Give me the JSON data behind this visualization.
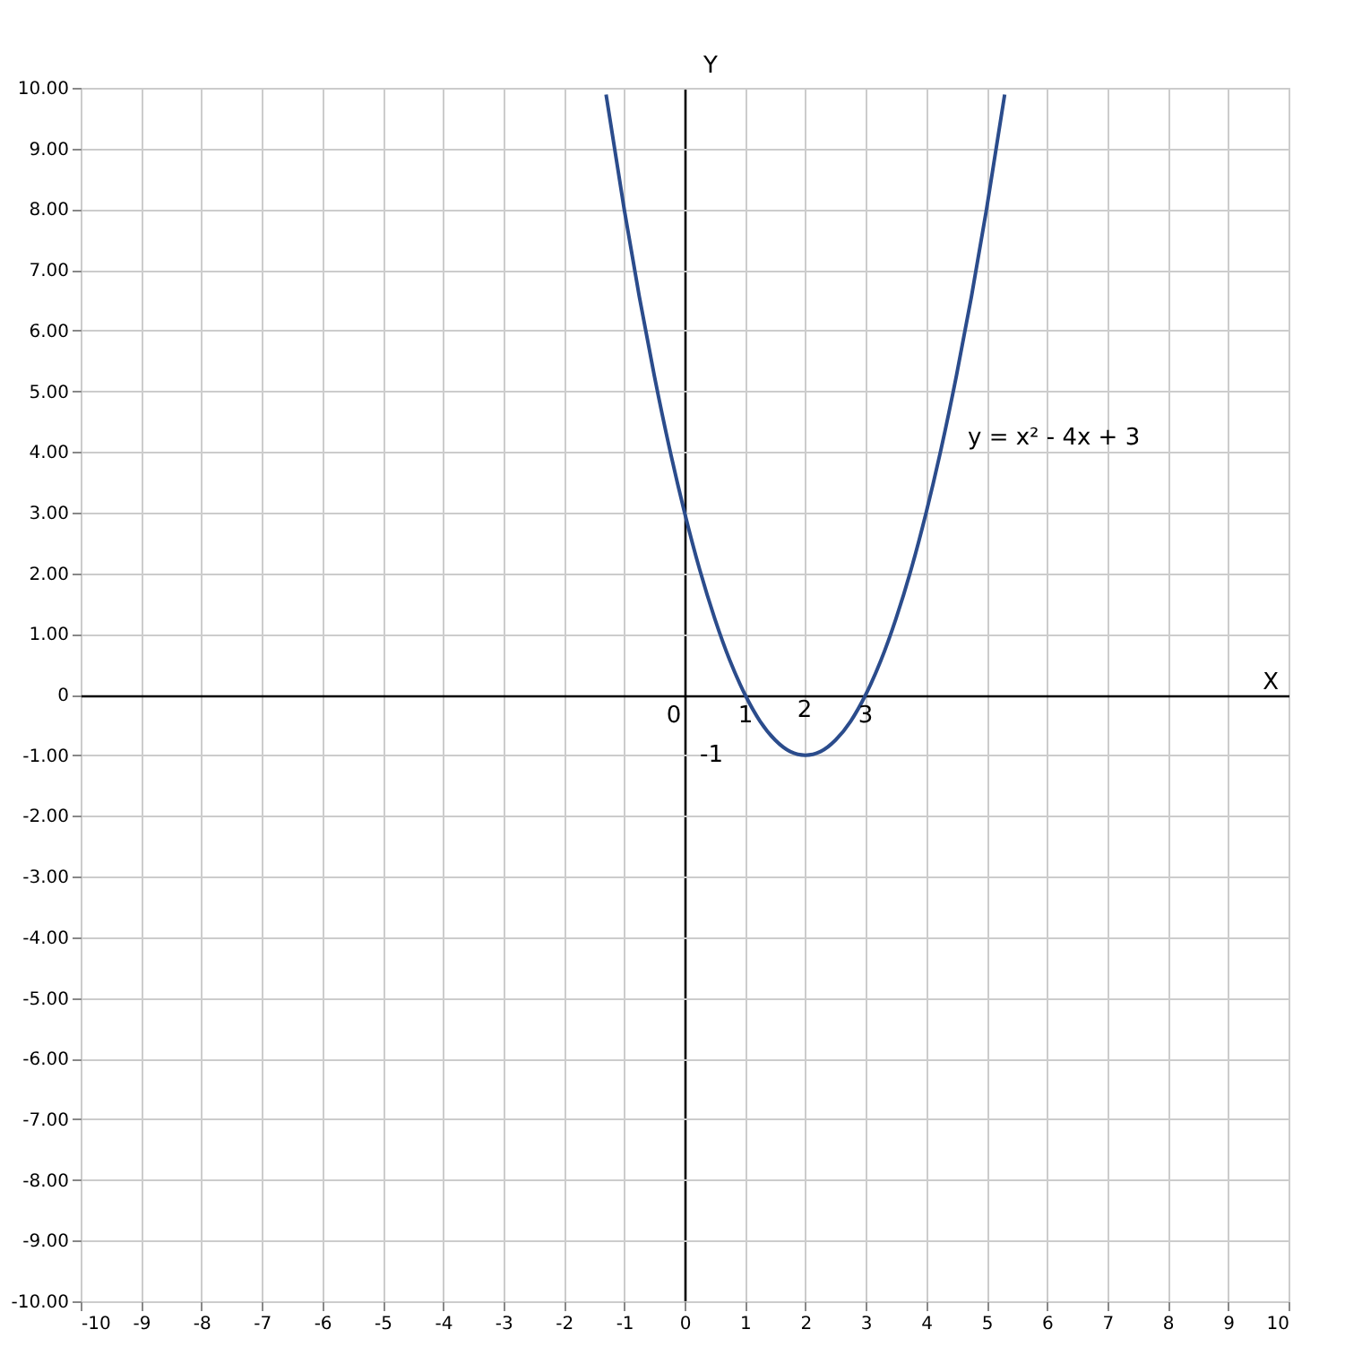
{
  "chart_data": {
    "type": "line",
    "x": [
      -1.3,
      -1,
      -0.75,
      -0.5,
      -0.25,
      0,
      0.25,
      0.5,
      0.75,
      1,
      1.25,
      1.5,
      1.75,
      2,
      2.25,
      2.5,
      2.75,
      3,
      3.25,
      3.5,
      3.75,
      4,
      4.25,
      4.5,
      4.75,
      5,
      5.3
    ],
    "series": [
      {
        "color": "#2b4c8c",
        "values": [
          9.89,
          8,
          6.56,
          5.25,
          4.06,
          3,
          2.06,
          1.25,
          0.56,
          0,
          -0.44,
          -0.75,
          -0.94,
          -1,
          -0.94,
          -0.75,
          -0.44,
          0,
          0.56,
          1.25,
          2.06,
          3,
          4.06,
          5.25,
          6.56,
          8,
          9.89
        ]
      }
    ],
    "xlim": [
      -10,
      10
    ],
    "xticks": [
      -10,
      -9,
      -8,
      -7,
      -6,
      -5,
      -4,
      -3,
      -2,
      -1,
      0,
      1,
      2,
      3,
      4,
      5,
      6,
      7,
      8,
      9,
      10
    ],
    "ylim": [
      -10,
      10
    ],
    "yticks": [
      {
        "value": -10,
        "label": "-10.00"
      },
      {
        "value": -9,
        "label": "-9.00"
      },
      {
        "value": -8,
        "label": "-8.00"
      },
      {
        "value": -7,
        "label": "-7.00"
      },
      {
        "value": -6,
        "label": "-6.00"
      },
      {
        "value": -5,
        "label": "-5.00"
      },
      {
        "value": -4,
        "label": "-4.00"
      },
      {
        "value": -3,
        "label": "-3.00"
      },
      {
        "value": -2,
        "label": "-2.00"
      },
      {
        "value": -1,
        "label": "-1.00"
      },
      0,
      {
        "value": 1,
        "label": "1.00"
      },
      {
        "value": 2,
        "label": "2.00"
      },
      {
        "value": 3,
        "label": "3.00"
      },
      {
        "value": 4,
        "label": "4.00"
      },
      {
        "value": 5,
        "label": "5.00"
      },
      {
        "value": 6,
        "label": "6.00"
      },
      {
        "value": 7,
        "label": "7.00"
      },
      {
        "value": 8,
        "label": "8.00"
      },
      {
        "value": 9,
        "label": "9.00"
      },
      {
        "value": 10,
        "label": "10.00"
      }
    ],
    "grid": true,
    "marker": "none",
    "line_style": "solid",
    "xlabel": "X",
    "ylabel": "Y",
    "annotations": [
      "0",
      "1",
      "2",
      "3",
      "-1",
      "y = x² - 4x + 3"
    ]
  }
}
